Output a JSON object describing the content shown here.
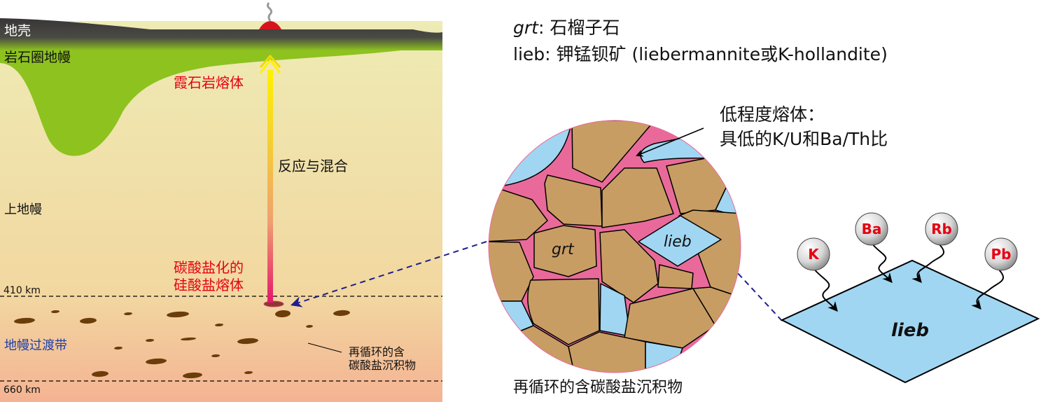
{
  "left_panel": {
    "crust": "地壳",
    "lithospheric_mantle": "岩石圈地幔",
    "nephelinite_melt": "霞石岩熔体",
    "reaction_mixing": "反应与混合",
    "upper_mantle": "上地幔",
    "carbonated_melt_line1": "碳酸盐化的",
    "carbonated_melt_line2": "硅酸盐熔体",
    "depth_410": "410 km",
    "depth_660": "660 km",
    "transition_zone": "地幔过渡带",
    "sediment_line1": "再循环的含",
    "sediment_line2": "碳酸盐沉积物"
  },
  "legend": {
    "grt_abbr": "grt",
    "grt_desc": ": 石榴子石",
    "lieb_abbr": "lieb",
    "lieb_desc": ": 钾锰钡矿 (liebermannite或K-hollandite)"
  },
  "microstructure": {
    "grt_label": "grt",
    "lieb_label": "lieb",
    "melt_line1": "低程度熔体：",
    "melt_line2": "具低的K/U和Ba/Th比",
    "caption": "再循环的含碳酸盐沉积物"
  },
  "lattice": {
    "label": "lieb",
    "elements": [
      "K",
      "Ba",
      "Rb",
      "Pb"
    ]
  },
  "colors": {
    "crust": "#3a3838",
    "lithosphere": "#8dc21f",
    "garnet": "#c89d63",
    "lieb": "#a0d6f2",
    "melt": "#e96a9a",
    "sediment": "#6b3d0a",
    "red_text": "#e50012",
    "blue_text": "#1d3fa8",
    "dashed_arrow": "#1e1e8c"
  }
}
